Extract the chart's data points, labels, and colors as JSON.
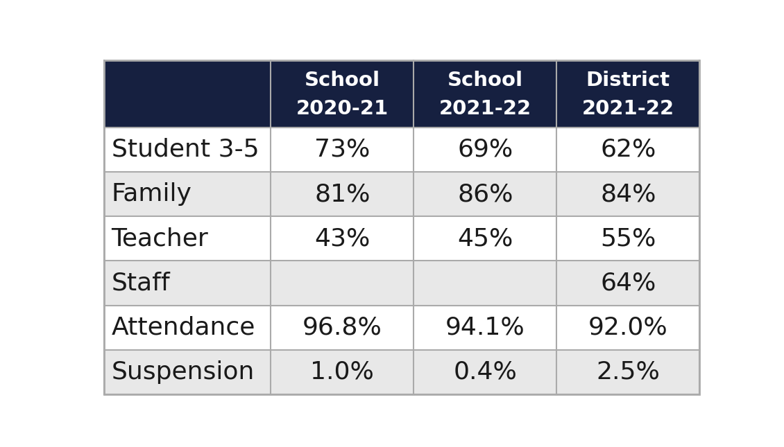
{
  "header_bg_color": "#162040",
  "header_text_color": "#ffffff",
  "row_colors": [
    "#ffffff",
    "#e8e8e8"
  ],
  "cell_text_color": "#1a1a1a",
  "border_color": "#aaaaaa",
  "col_headers": [
    [
      "",
      ""
    ],
    [
      "School",
      "2020-21"
    ],
    [
      "School",
      "2021-22"
    ],
    [
      "District",
      "2021-22"
    ]
  ],
  "row_labels": [
    "Student 3-5",
    "Family",
    "Teacher",
    "Staff",
    "Attendance",
    "Suspension"
  ],
  "data": [
    [
      "73%",
      "69%",
      "62%"
    ],
    [
      "81%",
      "86%",
      "84%"
    ],
    [
      "43%",
      "45%",
      "55%"
    ],
    [
      "",
      "",
      "64%"
    ],
    [
      "96.8%",
      "94.1%",
      "92.0%"
    ],
    [
      "1.0%",
      "0.4%",
      "2.5%"
    ]
  ],
  "fig_width": 11.3,
  "fig_height": 6.45,
  "header_font_size": 21,
  "label_font_size": 26,
  "data_font_size": 26
}
